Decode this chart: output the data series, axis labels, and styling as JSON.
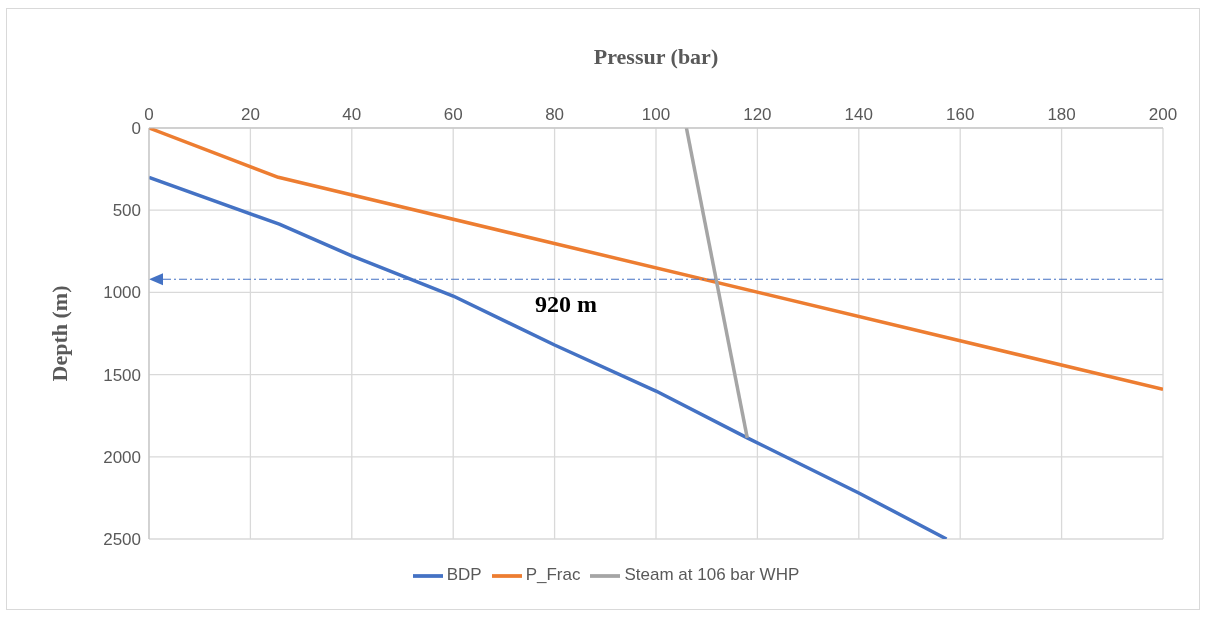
{
  "chart_data": {
    "type": "line",
    "xlabel": "Pressur (bar)",
    "ylabel": "Depth (m)",
    "xlim": [
      0,
      200
    ],
    "xticks": [
      0,
      20,
      40,
      60,
      80,
      100,
      120,
      140,
      160,
      180,
      200
    ],
    "ylim": [
      2500,
      0
    ],
    "yticks": [
      0,
      500,
      1000,
      1500,
      2000,
      2500
    ],
    "grid": true,
    "legend": "bottom",
    "marker": "none",
    "line_style": "solid",
    "series": [
      {
        "name": "BDP",
        "color": "#4472c4",
        "x": [
          0,
          25.7,
          40,
          60,
          80,
          100,
          118,
          140,
          157.3
        ],
        "values": [
          300,
          585,
          778,
          1022,
          1320,
          1600,
          1885,
          2220,
          2500
        ]
      },
      {
        "name": "P_Frac",
        "color": "#ed7d31",
        "x": [
          0,
          25.5,
          200
        ],
        "values": [
          0,
          300,
          1590
        ]
      },
      {
        "name": "Steam at 106 bar WHP",
        "color": "#a5a5a5",
        "x": [
          106,
          118
        ],
        "values": [
          0,
          1885
        ]
      }
    ],
    "ref_lines": [
      {
        "axis": "y",
        "value": 920,
        "label": "920 m",
        "color": "#4472c4",
        "line_style": "dashdot"
      }
    ]
  }
}
